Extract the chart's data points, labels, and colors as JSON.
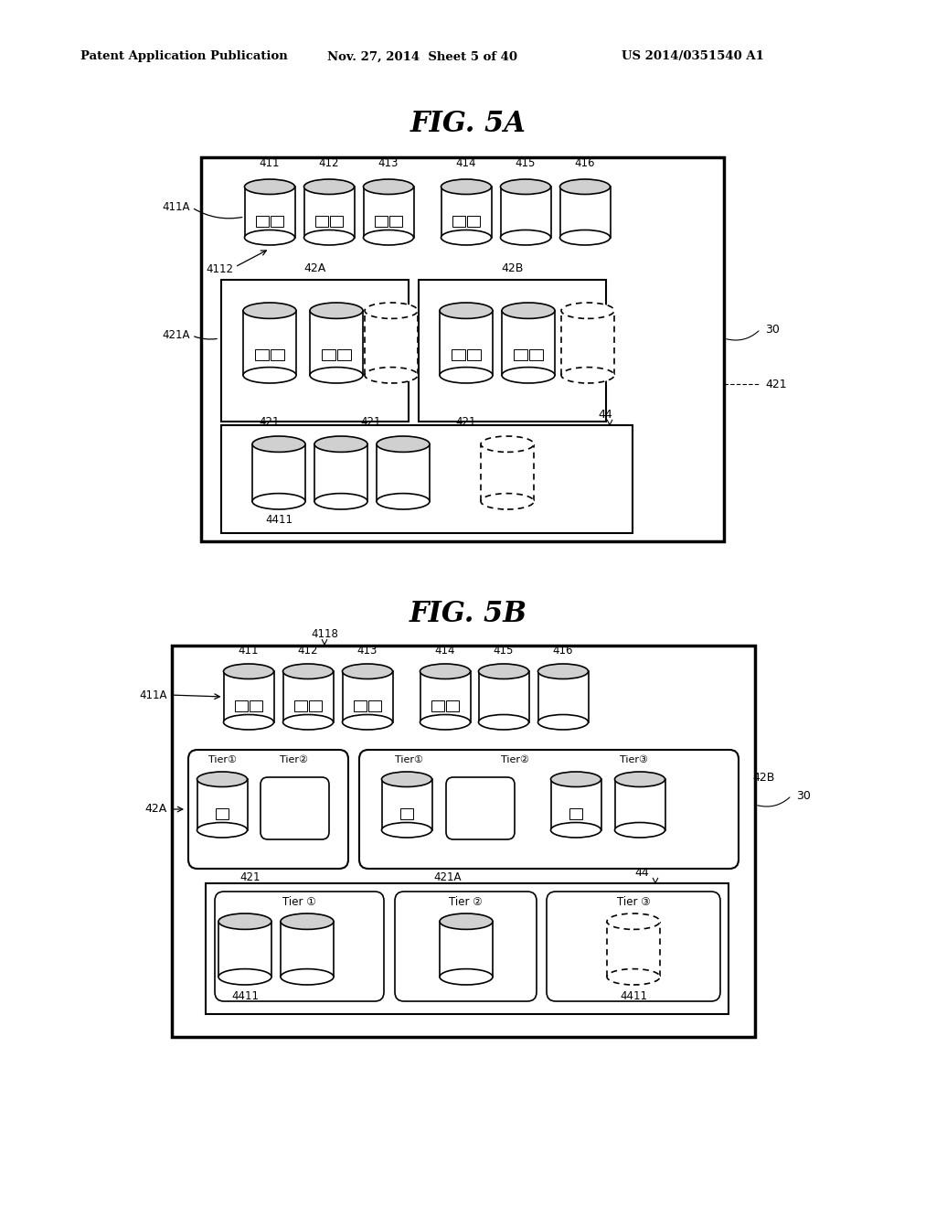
{
  "background_color": "#ffffff",
  "header_left": "Patent Application Publication",
  "header_mid": "Nov. 27, 2014  Sheet 5 of 40",
  "header_right": "US 2014/0351540 A1",
  "text_color": "#000000",
  "line_color": "#000000",
  "dashed_color": "#000000"
}
